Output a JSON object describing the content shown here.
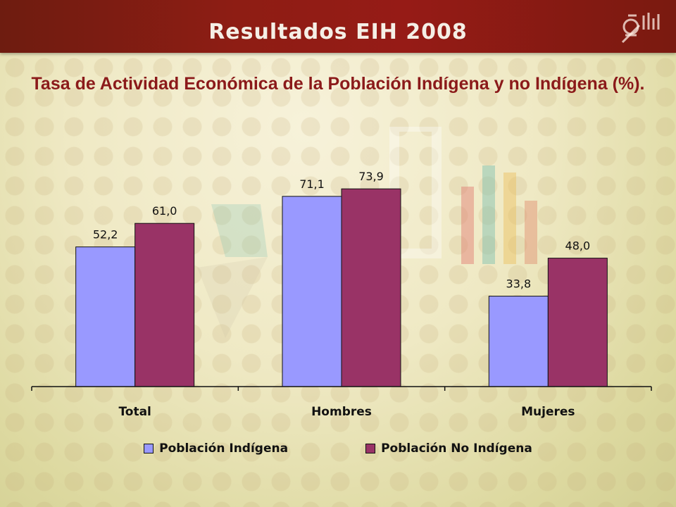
{
  "header": {
    "title": "Resultados EIH 2008",
    "logo_icon": "stats-logo-icon"
  },
  "chart_data": {
    "type": "bar",
    "title": "Tasa de Actividad Económica de la Población Indígena y no Indígena (%).",
    "categories": [
      "Total",
      "Hombres",
      "Mujeres"
    ],
    "series": [
      {
        "name": "Población Indígena",
        "values": [
          52.2,
          71.1,
          33.8
        ],
        "labels": [
          "52,2",
          "71,1",
          "33,8"
        ],
        "color": "#9999ff"
      },
      {
        "name": "Población No Indígena",
        "values": [
          61.0,
          73.9,
          48.0
        ],
        "labels": [
          "61,0",
          "73,9",
          "48,0"
        ],
        "color": "#993366"
      }
    ],
    "ylim": [
      0,
      100
    ],
    "grid": false,
    "legend": "bottom",
    "xlabel": "",
    "ylabel": ""
  }
}
